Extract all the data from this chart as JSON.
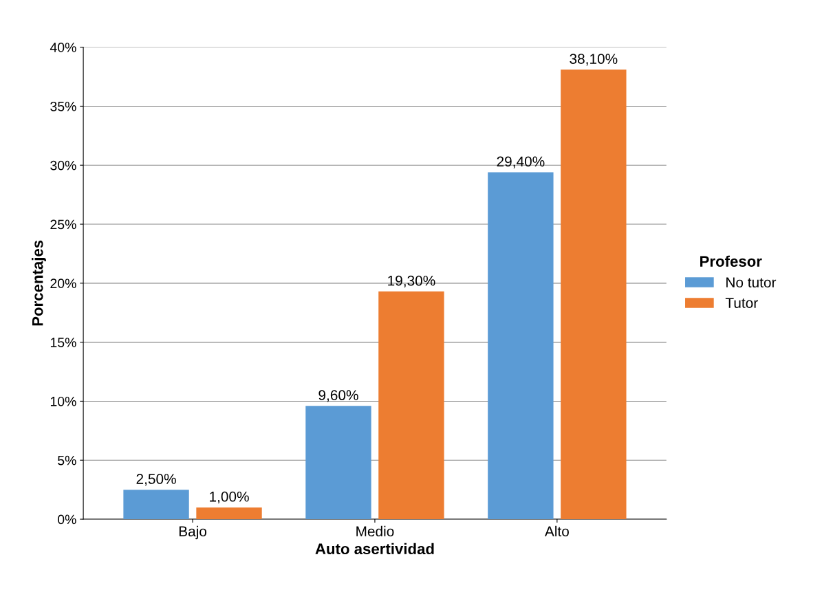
{
  "chart_data": {
    "type": "bar",
    "xlabel": "Auto asertividad",
    "ylabel": "Porcentajes",
    "legend_title": "Profesor",
    "categories": [
      "Bajo",
      "Medio",
      "Alto"
    ],
    "series": [
      {
        "name": "No tutor",
        "color": "#5b9bd5",
        "values": [
          2.5,
          9.6,
          29.4
        ],
        "value_labels": [
          "2,50%",
          "9,60%",
          "29,40%"
        ]
      },
      {
        "name": "Tutor",
        "color": "#ed7d31",
        "values": [
          1.0,
          19.3,
          38.1
        ],
        "value_labels": [
          "1,00%",
          "19,30%",
          "38,10%"
        ]
      }
    ],
    "ylim": [
      0,
      40
    ],
    "yticks": [
      {
        "value": 0,
        "label": "0%"
      },
      {
        "value": 5,
        "label": "5%"
      },
      {
        "value": 10,
        "label": "10%"
      },
      {
        "value": 15,
        "label": "15%"
      },
      {
        "value": 20,
        "label": "20%"
      },
      {
        "value": 25,
        "label": "25%"
      },
      {
        "value": 30,
        "label": "30%"
      },
      {
        "value": 35,
        "label": "35%"
      },
      {
        "value": 40,
        "label": "40%"
      }
    ],
    "grid": "y",
    "legend": "right"
  }
}
